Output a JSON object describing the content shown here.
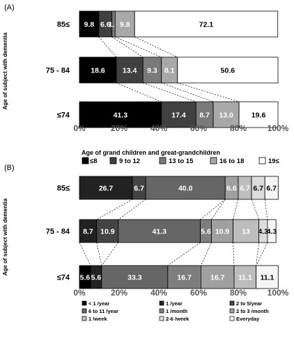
{
  "chart_data": [
    {
      "panel_label": "(A)",
      "type": "bar",
      "orientation": "horizontal",
      "stacked": true,
      "normalized": true,
      "ylabel": "Age of subject with dementia",
      "xlabel": "Age of grand children and great-grandchildren",
      "xticks": [
        "0%",
        "20%",
        "40%",
        "60%",
        "80%",
        "100%"
      ],
      "xlim": [
        0,
        100
      ],
      "categories": [
        "85≤",
        "75 - 84",
        "≤74"
      ],
      "legend_position": "bottom",
      "series": [
        {
          "name": "≤8",
          "color": "#000000",
          "text_color": "#ffffff",
          "values": [
            9.8,
            18.6,
            41.3
          ],
          "labels": [
            "9.8",
            "18.6",
            "41.3"
          ]
        },
        {
          "name": "9 to 12",
          "color": "#404040",
          "text_color": "#ffffff",
          "values": [
            6.6,
            13.4,
            17.4
          ],
          "labels": [
            "6.6",
            "13.4",
            "17.4"
          ]
        },
        {
          "name": "13 to 15",
          "color": "#7a7a7a",
          "text_color": "#ffffff",
          "values": [
            1.6,
            9.3,
            8.7
          ],
          "labels": [
            "1.6",
            "9.3",
            "8.7"
          ]
        },
        {
          "name": "16 to 18",
          "color": "#a8a8a8",
          "text_color": "#ffffff",
          "values": [
            9.8,
            8.1,
            13.0
          ],
          "labels": [
            "9.8",
            "8.1",
            "13.0"
          ]
        },
        {
          "name": "19≤",
          "color": "#ffffff",
          "text_color": "#000000",
          "values": [
            72.1,
            50.6,
            19.6
          ],
          "labels": [
            "72.1",
            "50.6",
            "19.6"
          ]
        }
      ]
    },
    {
      "panel_label": "(B)",
      "type": "bar",
      "orientation": "horizontal",
      "stacked": true,
      "normalized": true,
      "ylabel": "Age of subject with dementia",
      "xlabel": "",
      "xticks": [
        "0%",
        "20%",
        "40%",
        "60%",
        "80%",
        "100%"
      ],
      "xlim": [
        0,
        100
      ],
      "categories": [
        "85≤",
        "75 - 84",
        "≤74"
      ],
      "legend_position": "bottom",
      "series": [
        {
          "name": "< 1 /year",
          "color": "#000000",
          "text_color": "#ffffff",
          "values": [
            0,
            0,
            5.6
          ],
          "labels": [
            "",
            "",
            "5.6"
          ]
        },
        {
          "name": "1 /year",
          "color": "#222222",
          "text_color": "#ffffff",
          "values": [
            26.7,
            8.7,
            5.6
          ],
          "labels": [
            "26.7",
            "8.7",
            "5.6"
          ]
        },
        {
          "name": "2 to 5/year",
          "color": "#444444",
          "text_color": "#ffffff",
          "values": [
            6.7,
            10.9,
            0
          ],
          "labels": [
            "6.7",
            "10.9",
            ""
          ]
        },
        {
          "name": "6 to 11 /year",
          "color": "#666666",
          "text_color": "#ffffff",
          "values": [
            40.0,
            41.3,
            33.3
          ],
          "labels": [
            "40.0",
            "41.3",
            "33.3"
          ]
        },
        {
          "name": "1 /month",
          "color": "#7e7e7e",
          "text_color": "#ffffff",
          "values": [
            0,
            5.6,
            16.7
          ],
          "labels": [
            "",
            "5.6",
            "16.7"
          ]
        },
        {
          "name": "2 to 3 /month",
          "color": "#a0a0a0",
          "text_color": "#ffffff",
          "values": [
            6.6,
            10.9,
            16.7
          ],
          "labels": [
            "6.6",
            "10.9",
            "16.7"
          ]
        },
        {
          "name": "1 /week",
          "color": "#bdbdbd",
          "text_color": "#ffffff",
          "values": [
            6.7,
            13,
            11.1
          ],
          "labels": [
            "6.7",
            "13",
            "11.1"
          ]
        },
        {
          "name": "2-6 /week",
          "color": "#dcdcdc",
          "text_color": "#000000",
          "values": [
            6.7,
            4.3,
            0
          ],
          "labels": [
            "6.7",
            "4.3",
            ""
          ]
        },
        {
          "name": "Everyday",
          "color": "#f5f5f5",
          "text_color": "#000000",
          "values": [
            6.7,
            4.3,
            11.1
          ],
          "labels": [
            "6.7",
            "4.3",
            "11.1"
          ]
        }
      ]
    }
  ]
}
